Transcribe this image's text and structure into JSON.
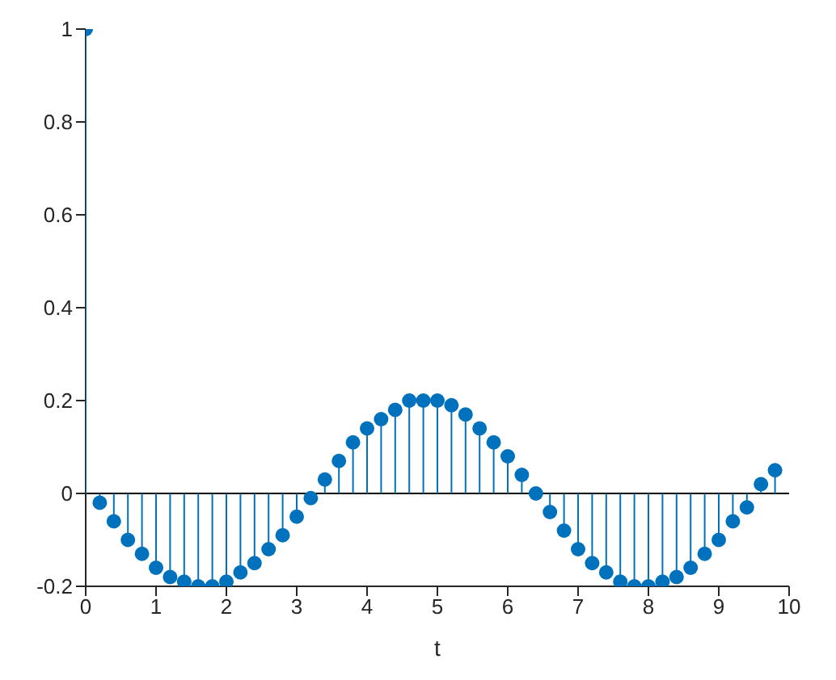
{
  "chart_data": {
    "type": "lollipop",
    "xlabel": "t",
    "x": [
      0,
      0.2,
      0.4,
      0.6,
      0.8,
      1,
      1.2,
      1.4,
      1.6,
      1.8,
      2,
      2.2,
      2.4,
      2.6,
      2.8,
      3,
      3.2,
      3.4,
      3.6,
      3.8,
      4,
      4.2,
      4.4,
      4.6,
      4.8,
      5,
      5.2,
      5.4,
      5.6,
      5.8,
      6,
      6.2,
      6.4,
      6.6,
      6.8,
      7,
      7.2,
      7.4,
      7.6,
      7.8,
      8,
      8.2,
      8.4,
      8.6,
      8.8,
      9,
      9.2,
      9.4,
      9.6,
      9.8
    ],
    "series": [
      {
        "color": "#0072bd",
        "values": [
          1,
          -0.02,
          -0.06,
          -0.1,
          -0.13,
          -0.16,
          -0.18,
          -0.19,
          -0.2,
          -0.2,
          -0.19,
          -0.17,
          -0.15,
          -0.12,
          -0.09,
          -0.05,
          -0.01,
          0.03,
          0.07,
          0.11,
          0.14,
          0.16,
          0.18,
          0.2,
          0.2,
          0.2,
          0.19,
          0.17,
          0.14,
          0.11,
          0.08,
          0.04,
          0,
          -0.04,
          -0.08,
          -0.12,
          -0.15,
          -0.17,
          -0.19,
          -0.2,
          -0.2,
          -0.19,
          -0.18,
          -0.16,
          -0.13,
          -0.1,
          -0.06,
          -0.03,
          0.02,
          0.05
        ]
      }
    ],
    "xlim": [
      0,
      10
    ],
    "xticks": [
      0,
      1,
      2,
      3,
      4,
      5,
      6,
      7,
      8,
      9,
      10
    ],
    "ylim": [
      -0.2,
      1
    ],
    "yticks": [
      -0.2,
      0,
      0.2,
      0.4,
      0.6,
      0.8,
      1
    ],
    "ref_lines": [
      {
        "axis": "y",
        "value": 0,
        "color": "#000000"
      }
    ],
    "marker": "circle",
    "grid": false,
    "legend": false
  }
}
